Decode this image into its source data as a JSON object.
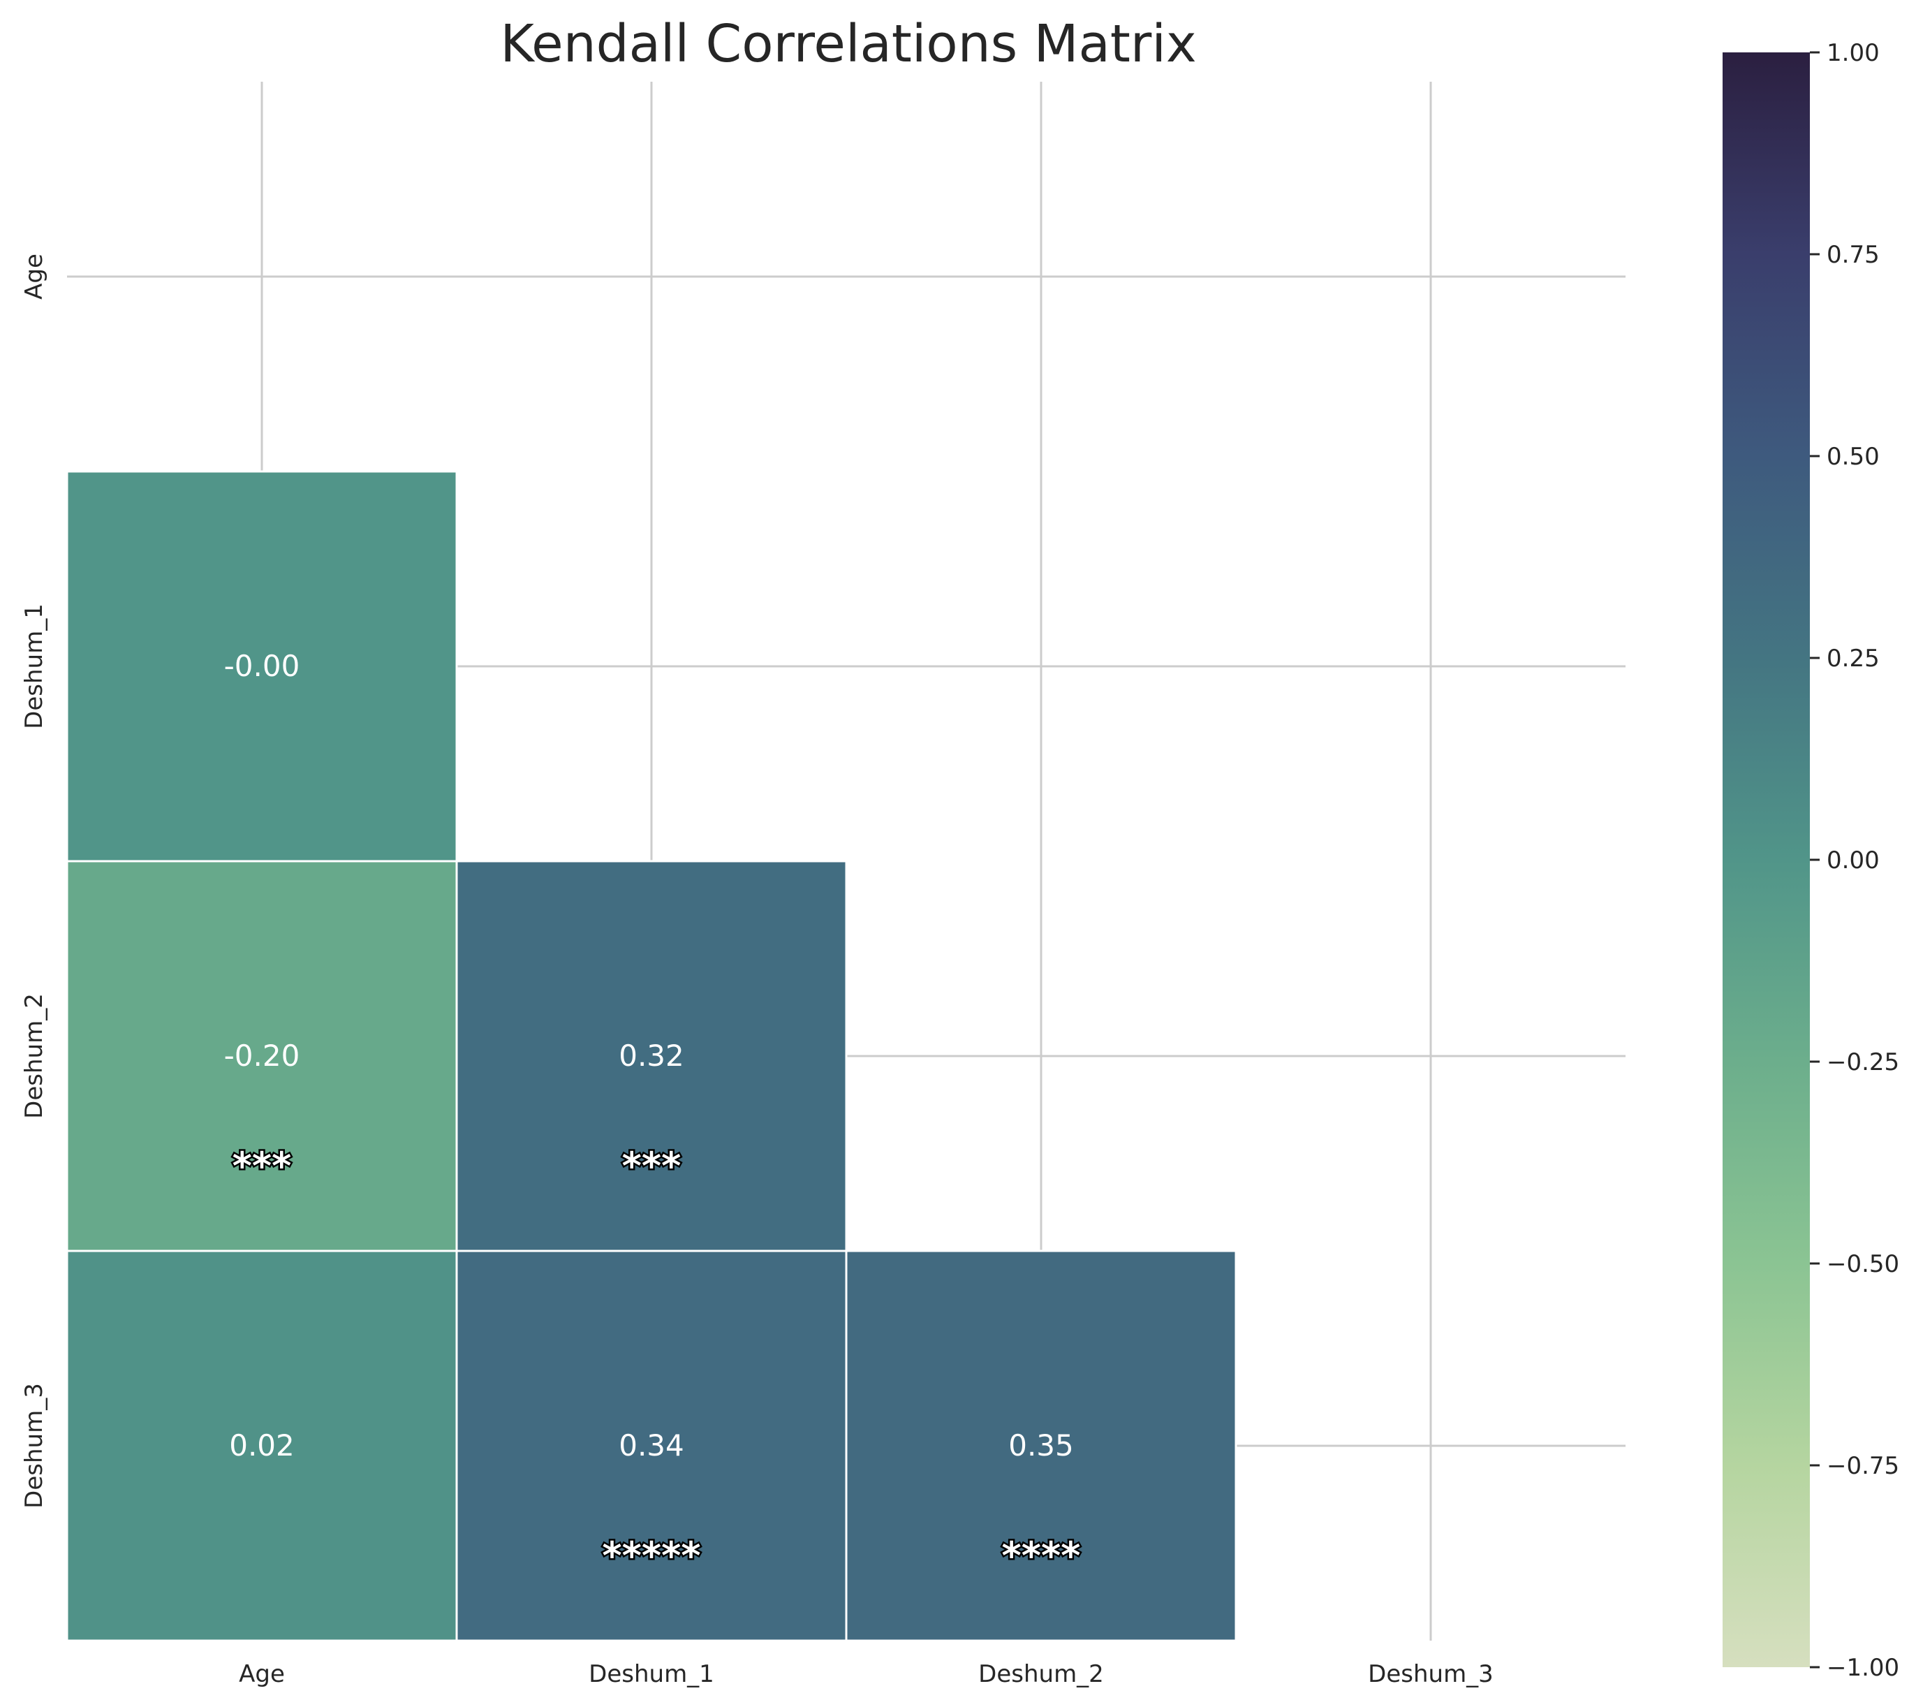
{
  "chart_data": {
    "type": "heatmap",
    "title": "Kendall Correlations Matrix",
    "xlabel": "",
    "ylabel": "",
    "x_categories": [
      "Age",
      "Deshum_1",
      "Deshum_2",
      "Deshum_3"
    ],
    "y_categories": [
      "Age",
      "Deshum_1",
      "Deshum_2",
      "Deshum_3"
    ],
    "mask": "upper triangle incl. diagonal",
    "cells": [
      {
        "row": 1,
        "col": 0,
        "value": -0.0,
        "label": "-0.00",
        "stars": ""
      },
      {
        "row": 2,
        "col": 0,
        "value": -0.2,
        "label": "-0.20",
        "stars": "***"
      },
      {
        "row": 2,
        "col": 1,
        "value": 0.32,
        "label": "0.32",
        "stars": "***"
      },
      {
        "row": 3,
        "col": 0,
        "value": 0.02,
        "label": "0.02",
        "stars": ""
      },
      {
        "row": 3,
        "col": 1,
        "value": 0.34,
        "label": "0.34",
        "stars": "*****"
      },
      {
        "row": 3,
        "col": 2,
        "value": 0.35,
        "label": "0.35",
        "stars": "****"
      }
    ],
    "colorbar": {
      "range": [
        -1.0,
        1.0
      ],
      "ticks": [
        1.0,
        0.75,
        0.5,
        0.25,
        0.0,
        -0.25,
        -0.5,
        -0.75,
        -1.0
      ],
      "tick_labels": [
        "1.00",
        "0.75",
        "0.50",
        "0.25",
        "0.00",
        "−0.25",
        "−0.50",
        "−0.75",
        "−1.00"
      ],
      "colormap_stops": [
        {
          "v": -1.0,
          "color": "#d6dfbf"
        },
        {
          "v": -0.75,
          "color": "#b5d5a0"
        },
        {
          "v": -0.5,
          "color": "#8bc493"
        },
        {
          "v": -0.25,
          "color": "#6cae8c"
        },
        {
          "v": 0.0,
          "color": "#519589"
        },
        {
          "v": 0.25,
          "color": "#447582"
        },
        {
          "v": 0.5,
          "color": "#3e5a7e"
        },
        {
          "v": 0.75,
          "color": "#3a3e6c"
        },
        {
          "v": 1.0,
          "color": "#2b1f40"
        }
      ]
    },
    "grid": true,
    "legend": "colorbar right"
  }
}
